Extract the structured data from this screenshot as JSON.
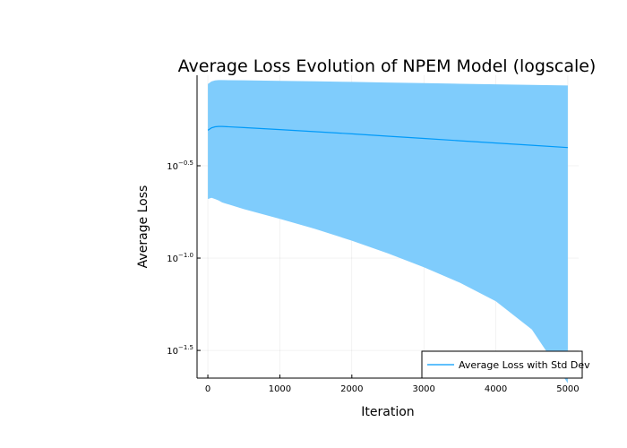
{
  "chart_data": {
    "type": "area",
    "title": "Average Loss Evolution of NPEM Model (logscale)",
    "xlabel": "Iteration",
    "ylabel": "Average Loss",
    "xlim": [
      -150,
      5150
    ],
    "ylim_log10": [
      -1.65,
      -0.01
    ],
    "y_scale": "log10",
    "grid": true,
    "legend_position": "bottom-right",
    "x_ticks": [
      0,
      1000,
      2000,
      3000,
      4000,
      5000
    ],
    "x_tick_labels": [
      "0",
      "1000",
      "2000",
      "3000",
      "4000",
      "5000"
    ],
    "y_ticks_log10": [
      -1.5,
      -1.0,
      -0.5
    ],
    "y_tick_labels": [
      {
        "base": "10",
        "exp": "−1.5"
      },
      {
        "base": "10",
        "exp": "−1.0"
      },
      {
        "base": "10",
        "exp": "−0.5"
      }
    ],
    "series": [
      {
        "name": "Average Loss with Std Dev",
        "color": "#009af9",
        "band_color": "#7fccfc",
        "x": [
          0,
          50,
          100,
          150,
          200,
          500,
          1000,
          1500,
          2000,
          2500,
          3000,
          3500,
          4000,
          4500,
          5000
        ],
        "mean": [
          0.492,
          0.507,
          0.514,
          0.5165,
          0.5165,
          0.5089,
          0.4966,
          0.4835,
          0.4704,
          0.4574,
          0.4447,
          0.432,
          0.4198,
          0.4082,
          0.3966
        ],
        "upper": [
          0.877,
          0.905,
          0.916,
          0.92,
          0.92,
          0.918,
          0.912,
          0.906,
          0.9,
          0.893,
          0.886,
          0.879,
          0.873,
          0.866,
          0.86
        ],
        "lower": [
          0.209,
          0.212,
          0.209,
          0.205,
          0.2,
          0.1842,
          0.163,
          0.1435,
          0.1242,
          0.1061,
          0.0892,
          0.0736,
          0.0583,
          0.041,
          0.021
        ]
      }
    ]
  }
}
